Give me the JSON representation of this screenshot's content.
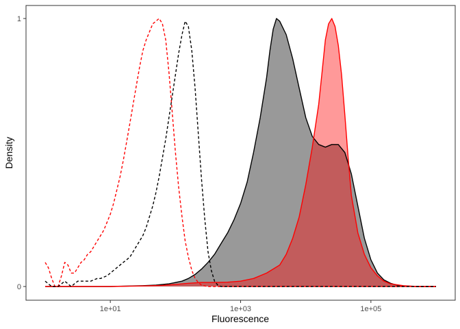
{
  "chart_data": {
    "type": "area",
    "title": "",
    "xlabel": "Fluorescence",
    "ylabel": "Density",
    "x_scale": "log10",
    "xlim": [
      0.9,
      1000000
    ],
    "ylim": [
      0,
      1
    ],
    "x_ticks": [
      10,
      1000,
      100000
    ],
    "x_tick_labels": [
      "1e+01",
      "1e+03",
      "1e+05"
    ],
    "y_ticks": [
      0,
      1
    ],
    "y_tick_labels": [
      "0",
      "1"
    ],
    "grid": false,
    "legend": "none",
    "series": [
      {
        "line_color": "#FF0000",
        "dashed": true,
        "filled": false,
        "points": [
          [
            1,
            0.09
          ],
          [
            1.12,
            0.07
          ],
          [
            1.26,
            0.03
          ],
          [
            1.41,
            0.0
          ],
          [
            1.58,
            0.0
          ],
          [
            1.78,
            0.04
          ],
          [
            2,
            0.09
          ],
          [
            2.24,
            0.08
          ],
          [
            2.51,
            0.05
          ],
          [
            2.82,
            0.05
          ],
          [
            3.16,
            0.07
          ],
          [
            3.55,
            0.09
          ],
          [
            3.98,
            0.1
          ],
          [
            4.47,
            0.12
          ],
          [
            5.01,
            0.13
          ],
          [
            5.62,
            0.15
          ],
          [
            6.31,
            0.17
          ],
          [
            7.08,
            0.19
          ],
          [
            7.94,
            0.21
          ],
          [
            8.91,
            0.24
          ],
          [
            10,
            0.27
          ],
          [
            11.2,
            0.31
          ],
          [
            12.6,
            0.36
          ],
          [
            14.1,
            0.41
          ],
          [
            15.8,
            0.47
          ],
          [
            17.8,
            0.54
          ],
          [
            20,
            0.61
          ],
          [
            22.4,
            0.68
          ],
          [
            25.1,
            0.75
          ],
          [
            28.2,
            0.82
          ],
          [
            31.6,
            0.88
          ],
          [
            35.5,
            0.92
          ],
          [
            39.8,
            0.95
          ],
          [
            44.7,
            0.98
          ],
          [
            50.1,
            0.99
          ],
          [
            56.2,
            1.0
          ],
          [
            63.1,
            0.98
          ],
          [
            70.8,
            0.92
          ],
          [
            79.4,
            0.8
          ],
          [
            89.1,
            0.65
          ],
          [
            100,
            0.5
          ],
          [
            112,
            0.37
          ],
          [
            126,
            0.26
          ],
          [
            141,
            0.17
          ],
          [
            158,
            0.11
          ],
          [
            178,
            0.06
          ],
          [
            200,
            0.03
          ],
          [
            224,
            0.015
          ],
          [
            251,
            0.005
          ],
          [
            282,
            0.002
          ],
          [
            316,
            0.0
          ],
          [
            400,
            0.0
          ],
          [
            1000,
            0.0
          ],
          [
            10000,
            0.0
          ],
          [
            100000,
            0.0
          ],
          [
            1000000,
            0.0
          ]
        ]
      },
      {
        "line_color": "#000000",
        "dashed": true,
        "filled": false,
        "points": [
          [
            1,
            0.02
          ],
          [
            1.12,
            0.01
          ],
          [
            1.26,
            0.0
          ],
          [
            1.58,
            0.0
          ],
          [
            1.78,
            0.01
          ],
          [
            2,
            0.02
          ],
          [
            2.24,
            0.01
          ],
          [
            2.51,
            0.0
          ],
          [
            2.82,
            0.01
          ],
          [
            3.16,
            0.02
          ],
          [
            3.55,
            0.02
          ],
          [
            3.98,
            0.02
          ],
          [
            4.47,
            0.02
          ],
          [
            5.01,
            0.02
          ],
          [
            5.62,
            0.025
          ],
          [
            6.31,
            0.03
          ],
          [
            7.08,
            0.03
          ],
          [
            7.94,
            0.035
          ],
          [
            8.91,
            0.04
          ],
          [
            10,
            0.05
          ],
          [
            11.2,
            0.06
          ],
          [
            12.6,
            0.07
          ],
          [
            14.1,
            0.08
          ],
          [
            15.8,
            0.09
          ],
          [
            17.8,
            0.1
          ],
          [
            20,
            0.11
          ],
          [
            22.4,
            0.13
          ],
          [
            25.1,
            0.15
          ],
          [
            28.2,
            0.17
          ],
          [
            31.6,
            0.19
          ],
          [
            35.5,
            0.22
          ],
          [
            39.8,
            0.26
          ],
          [
            44.7,
            0.3
          ],
          [
            50.1,
            0.35
          ],
          [
            56.2,
            0.41
          ],
          [
            63.1,
            0.48
          ],
          [
            70.8,
            0.55
          ],
          [
            79.4,
            0.63
          ],
          [
            89.1,
            0.71
          ],
          [
            100,
            0.79
          ],
          [
            112,
            0.87
          ],
          [
            126,
            0.94
          ],
          [
            141,
            0.99
          ],
          [
            158,
            0.97
          ],
          [
            178,
            0.88
          ],
          [
            200,
            0.74
          ],
          [
            224,
            0.57
          ],
          [
            251,
            0.4
          ],
          [
            282,
            0.25
          ],
          [
            316,
            0.13
          ],
          [
            355,
            0.06
          ],
          [
            398,
            0.02
          ],
          [
            447,
            0.005
          ],
          [
            501,
            0.0
          ],
          [
            1000,
            0.0
          ],
          [
            10000,
            0.0
          ],
          [
            100000,
            0.0
          ],
          [
            1000000,
            0.0
          ]
        ]
      },
      {
        "line_color": "#000000",
        "fill_color": "#999999",
        "dashed": false,
        "filled": true,
        "points": [
          [
            1,
            0.0
          ],
          [
            10,
            0.0
          ],
          [
            31.6,
            0.003
          ],
          [
            50.1,
            0.005
          ],
          [
            79.4,
            0.01
          ],
          [
            126,
            0.02
          ],
          [
            158,
            0.03
          ],
          [
            200,
            0.045
          ],
          [
            251,
            0.065
          ],
          [
            316,
            0.09
          ],
          [
            398,
            0.12
          ],
          [
            501,
            0.16
          ],
          [
            631,
            0.2
          ],
          [
            794,
            0.25
          ],
          [
            1000,
            0.31
          ],
          [
            1260,
            0.39
          ],
          [
            1580,
            0.5
          ],
          [
            2000,
            0.63
          ],
          [
            2510,
            0.78
          ],
          [
            2820,
            0.88
          ],
          [
            3160,
            0.96
          ],
          [
            3550,
            1.0
          ],
          [
            3980,
            0.99
          ],
          [
            5010,
            0.94
          ],
          [
            6310,
            0.85
          ],
          [
            7940,
            0.74
          ],
          [
            10000,
            0.63
          ],
          [
            12600,
            0.56
          ],
          [
            15800,
            0.53
          ],
          [
            20000,
            0.52
          ],
          [
            25100,
            0.53
          ],
          [
            31600,
            0.53
          ],
          [
            39800,
            0.5
          ],
          [
            50100,
            0.42
          ],
          [
            63100,
            0.3
          ],
          [
            79400,
            0.18
          ],
          [
            100000,
            0.1
          ],
          [
            126000,
            0.05
          ],
          [
            158000,
            0.025
          ],
          [
            200000,
            0.012
          ],
          [
            251000,
            0.005
          ],
          [
            316000,
            0.002
          ],
          [
            501000,
            0.0
          ],
          [
            1000000,
            0.0
          ]
        ]
      },
      {
        "line_color": "#FF0000",
        "fill_color": "#FF0000",
        "fill_opacity": 0.4,
        "dashed": false,
        "filled": true,
        "points": [
          [
            1,
            0.0
          ],
          [
            10,
            0.0
          ],
          [
            31.6,
            0.002
          ],
          [
            63.1,
            0.004
          ],
          [
            100,
            0.008
          ],
          [
            158,
            0.012
          ],
          [
            251,
            0.015
          ],
          [
            398,
            0.015
          ],
          [
            631,
            0.016
          ],
          [
            1000,
            0.02
          ],
          [
            1580,
            0.03
          ],
          [
            2510,
            0.05
          ],
          [
            3980,
            0.08
          ],
          [
            5010,
            0.12
          ],
          [
            6310,
            0.18
          ],
          [
            7940,
            0.26
          ],
          [
            10000,
            0.38
          ],
          [
            12600,
            0.52
          ],
          [
            15800,
            0.68
          ],
          [
            17800,
            0.8
          ],
          [
            20000,
            0.92
          ],
          [
            22400,
            0.98
          ],
          [
            25100,
            1.0
          ],
          [
            28200,
            0.97
          ],
          [
            31600,
            0.9
          ],
          [
            35500,
            0.79
          ],
          [
            39800,
            0.64
          ],
          [
            44700,
            0.48
          ],
          [
            50100,
            0.34
          ],
          [
            63100,
            0.2
          ],
          [
            79400,
            0.12
          ],
          [
            100000,
            0.07
          ],
          [
            126000,
            0.04
          ],
          [
            158000,
            0.02
          ],
          [
            200000,
            0.01
          ],
          [
            316000,
            0.003
          ],
          [
            501000,
            0.0
          ],
          [
            1000000,
            0.0
          ]
        ]
      }
    ]
  }
}
